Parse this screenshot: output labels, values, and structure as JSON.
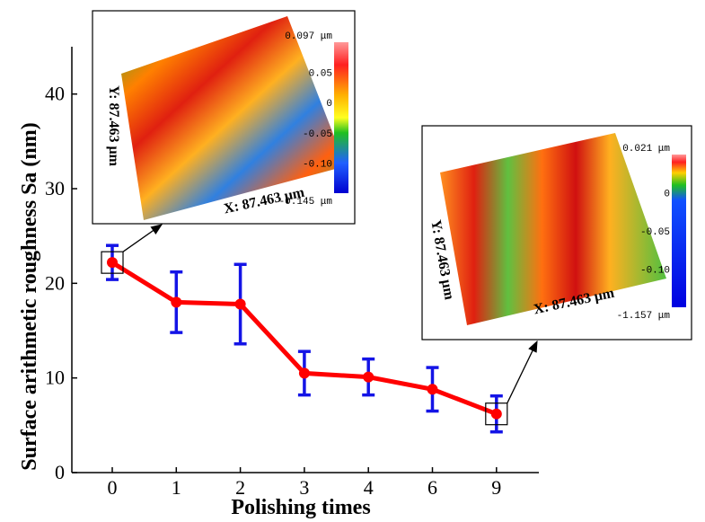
{
  "chart_data": {
    "type": "line",
    "x_label": "Polishing times",
    "y_label": "Surface arithmetic roughness  Sa (nm)",
    "categories": [
      "0",
      "1",
      "2",
      "3",
      "4",
      "6",
      "9"
    ],
    "values": [
      22.2,
      18.0,
      17.8,
      10.5,
      10.1,
      8.8,
      6.2
    ],
    "errors": [
      1.8,
      3.2,
      4.2,
      2.3,
      1.9,
      2.3,
      1.9
    ],
    "color": "#ff0000",
    "error_color": "#1414e6",
    "ylim": [
      0,
      45
    ],
    "yticks": [
      0,
      10,
      20,
      30,
      40
    ],
    "insets": [
      {
        "x_label": "X: 87.463 μm",
        "y_label": "Y: 87.463 μm",
        "colorbar_labels": [
          "0.097 μm",
          "0.05",
          "0",
          "-0.05",
          "-0.10",
          "-0.145 μm"
        ]
      },
      {
        "x_label": "X: 87.463 μm",
        "y_label": "Y: 87.463 μm",
        "colorbar_labels": [
          "0.021 μm",
          "0",
          "-0.05",
          "-0.10",
          "-1.157 μm"
        ]
      }
    ]
  }
}
